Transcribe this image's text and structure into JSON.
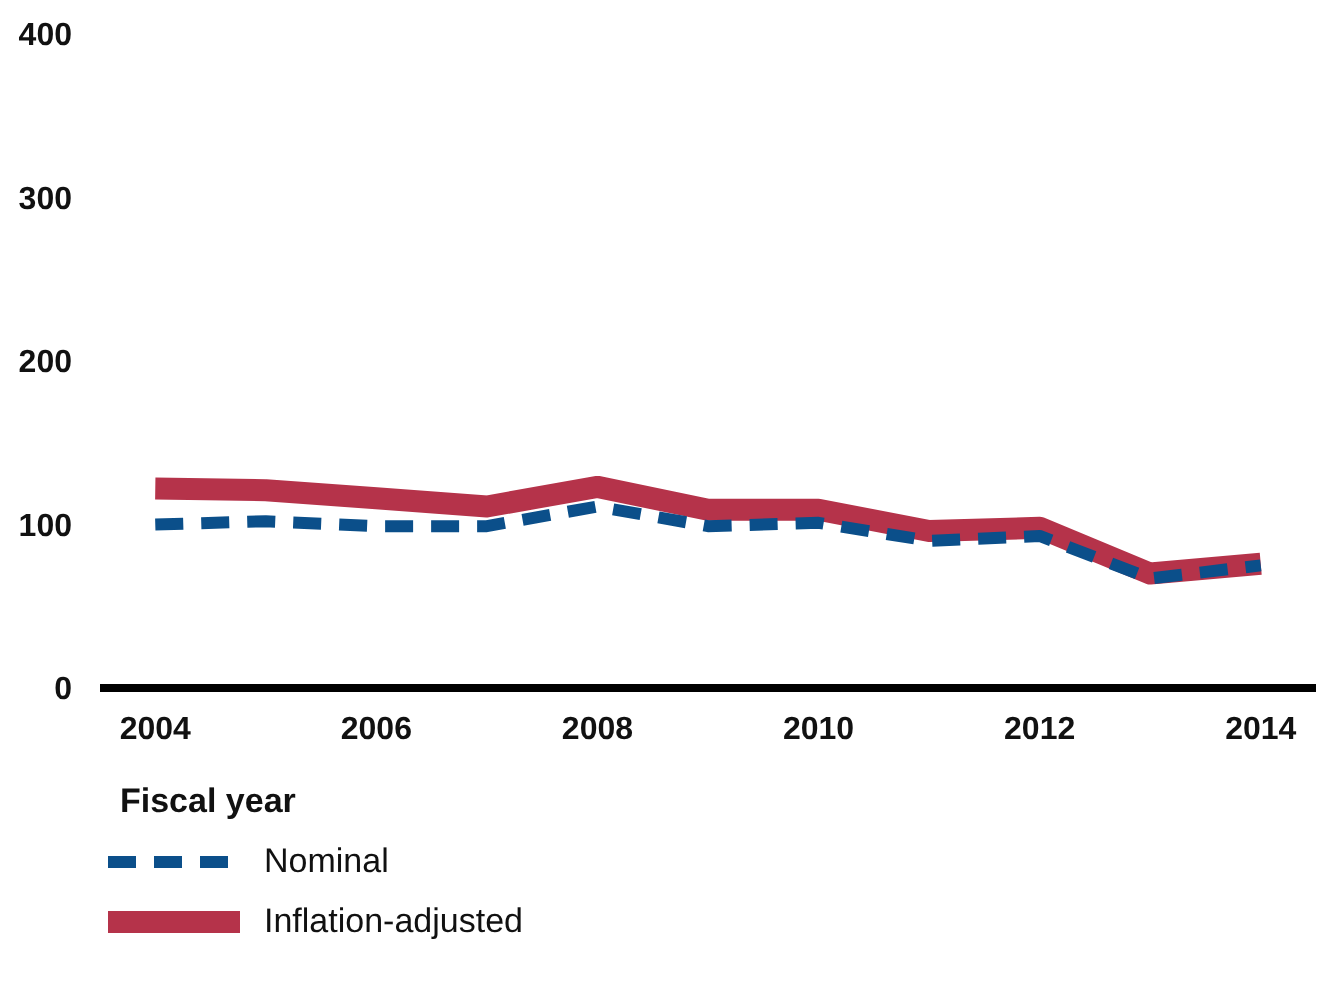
{
  "chart_data": {
    "type": "line",
    "xlabel": "Fiscal year",
    "x": [
      2004,
      2005,
      2006,
      2007,
      2008,
      2009,
      2010,
      2011,
      2012,
      2013,
      2014
    ],
    "series": [
      {
        "name": "Nominal",
        "color": "#0b4f8a",
        "line_style": "dashed",
        "values": [
          100,
          102,
          99,
          99,
          111,
          99,
          101,
          90,
          93,
          67,
          75
        ]
      },
      {
        "name": "Inflation-adjusted",
        "color": "#b5334a",
        "line_style": "solid",
        "values": [
          122,
          121,
          116,
          111,
          123,
          109,
          109,
          96,
          98,
          70,
          76
        ]
      }
    ],
    "xlim": [
      2003.5,
      2014.5
    ],
    "xticks": [
      2004,
      2006,
      2008,
      2010,
      2012,
      2014
    ],
    "ylim": [
      0,
      400
    ],
    "yticks": [
      0,
      100,
      200,
      300,
      400
    ],
    "grid": false,
    "legend": "bottom left",
    "marker": "none"
  }
}
